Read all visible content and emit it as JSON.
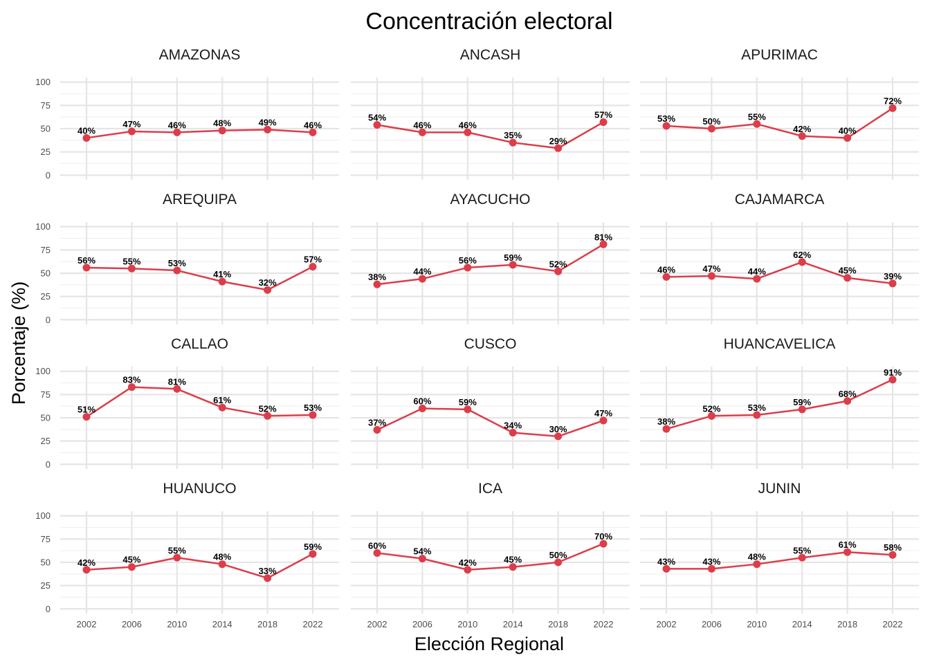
{
  "chart_data": {
    "type": "line",
    "title": "Concentración electoral",
    "xlabel": "Elección Regional",
    "ylabel": "Porcentaje (%)",
    "x": [
      2002,
      2006,
      2010,
      2014,
      2018,
      2022
    ],
    "x_tick_labels": [
      "2002",
      "2006",
      "2010",
      "2014",
      "2018",
      "2022"
    ],
    "ylim": [
      0,
      100
    ],
    "y_ticks": [
      0,
      25,
      50,
      75,
      100
    ],
    "y_tick_labels": [
      "0",
      "25",
      "50",
      "75",
      "100"
    ],
    "grid": true,
    "line_color": "#DC3D4A",
    "panels": [
      {
        "name": "AMAZONAS",
        "values": [
          40,
          47,
          46,
          48,
          49,
          46
        ],
        "labels": [
          "40%",
          "47%",
          "46%",
          "48%",
          "49%",
          "46%"
        ]
      },
      {
        "name": "ANCASH",
        "values": [
          54,
          46,
          46,
          35,
          29,
          57
        ],
        "labels": [
          "54%",
          "46%",
          "46%",
          "35%",
          "29%",
          "57%"
        ]
      },
      {
        "name": "APURIMAC",
        "values": [
          53,
          50,
          55,
          42,
          40,
          72
        ],
        "labels": [
          "53%",
          "50%",
          "55%",
          "42%",
          "40%",
          "72%"
        ]
      },
      {
        "name": "AREQUIPA",
        "values": [
          56,
          55,
          53,
          41,
          32,
          57
        ],
        "labels": [
          "56%",
          "55%",
          "53%",
          "41%",
          "32%",
          "57%"
        ]
      },
      {
        "name": "AYACUCHO",
        "values": [
          38,
          44,
          56,
          59,
          52,
          81
        ],
        "labels": [
          "38%",
          "44%",
          "56%",
          "59%",
          "52%",
          "81%"
        ]
      },
      {
        "name": "CAJAMARCA",
        "values": [
          46,
          47,
          44,
          62,
          45,
          39
        ],
        "labels": [
          "46%",
          "47%",
          "44%",
          "62%",
          "45%",
          "39%"
        ]
      },
      {
        "name": "CALLAO",
        "values": [
          51,
          83,
          81,
          61,
          52,
          53
        ],
        "labels": [
          "51%",
          "83%",
          "81%",
          "61%",
          "52%",
          "53%"
        ]
      },
      {
        "name": "CUSCO",
        "values": [
          37,
          60,
          59,
          34,
          30,
          47
        ],
        "labels": [
          "37%",
          "60%",
          "59%",
          "34%",
          "30%",
          "47%"
        ]
      },
      {
        "name": "HUANCAVELICA",
        "values": [
          38,
          52,
          53,
          59,
          68,
          91
        ],
        "labels": [
          "38%",
          "52%",
          "53%",
          "59%",
          "68%",
          "91%"
        ]
      },
      {
        "name": "HUANUCO",
        "values": [
          42,
          45,
          55,
          48,
          33,
          59
        ],
        "labels": [
          "42%",
          "45%",
          "55%",
          "48%",
          "33%",
          "59%"
        ]
      },
      {
        "name": "ICA",
        "values": [
          60,
          54,
          42,
          45,
          50,
          70
        ],
        "labels": [
          "60%",
          "54%",
          "42%",
          "45%",
          "50%",
          "70%"
        ]
      },
      {
        "name": "JUNIN",
        "values": [
          43,
          43,
          48,
          55,
          61,
          58
        ],
        "labels": [
          "43%",
          "43%",
          "48%",
          "55%",
          "61%",
          "58%"
        ]
      }
    ]
  }
}
